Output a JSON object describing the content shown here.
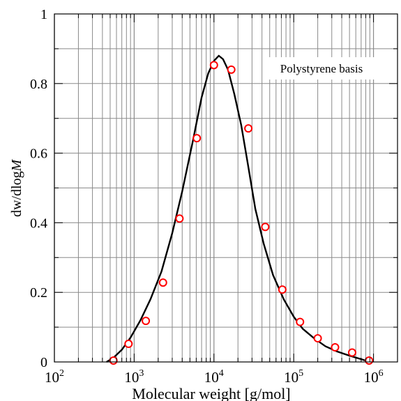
{
  "chart_data": {
    "type": "line",
    "xscale": "log",
    "xlim": [
      100,
      2000000
    ],
    "ylim": [
      0,
      1
    ],
    "xlabel": "Molecular weight [g/mol]",
    "ylabel": "dw/dlogM",
    "annotation": "Polystyrene basis",
    "x_tick_labels": [
      {
        "value": 100,
        "base": "10",
        "exp": "2"
      },
      {
        "value": 1000,
        "base": "10",
        "exp": "3"
      },
      {
        "value": 10000,
        "base": "10",
        "exp": "4"
      },
      {
        "value": 100000,
        "base": "10",
        "exp": "5"
      },
      {
        "value": 1000000,
        "base": "10",
        "exp": "6"
      }
    ],
    "y_ticks": [
      0,
      0.2,
      0.4,
      0.6,
      0.8,
      1
    ],
    "y_tick_labels": [
      "0",
      "0.2",
      "0.4",
      "0.6",
      "0.8",
      "1"
    ],
    "grid": true,
    "series": [
      {
        "kind": "curve",
        "color": "#000000",
        "x": [
          450,
          550,
          700,
          900,
          1200,
          1600,
          2200,
          3000,
          4000,
          5500,
          7000,
          8500,
          10000,
          11500,
          13000,
          15000,
          18000,
          22000,
          27000,
          33000,
          42000,
          55000,
          75000,
          100000,
          130000,
          180000,
          250000,
          350000,
          500000,
          700000,
          900000
        ],
        "y": [
          0.0,
          0.012,
          0.035,
          0.07,
          0.12,
          0.18,
          0.26,
          0.37,
          0.49,
          0.64,
          0.76,
          0.83,
          0.865,
          0.88,
          0.87,
          0.84,
          0.77,
          0.68,
          0.56,
          0.44,
          0.34,
          0.25,
          0.18,
          0.13,
          0.095,
          0.068,
          0.045,
          0.03,
          0.018,
          0.008,
          0.0
        ]
      },
      {
        "kind": "markers",
        "color": "#ff0000",
        "x": [
          550,
          850,
          1400,
          2300,
          3700,
          6100,
          10000,
          16500,
          27000,
          44000,
          72000,
          120000,
          200000,
          330000,
          540000,
          880000
        ],
        "y": [
          0.004,
          0.052,
          0.118,
          0.228,
          0.412,
          0.643,
          0.853,
          0.84,
          0.671,
          0.388,
          0.208,
          0.115,
          0.068,
          0.042,
          0.027,
          0.004
        ]
      }
    ]
  }
}
